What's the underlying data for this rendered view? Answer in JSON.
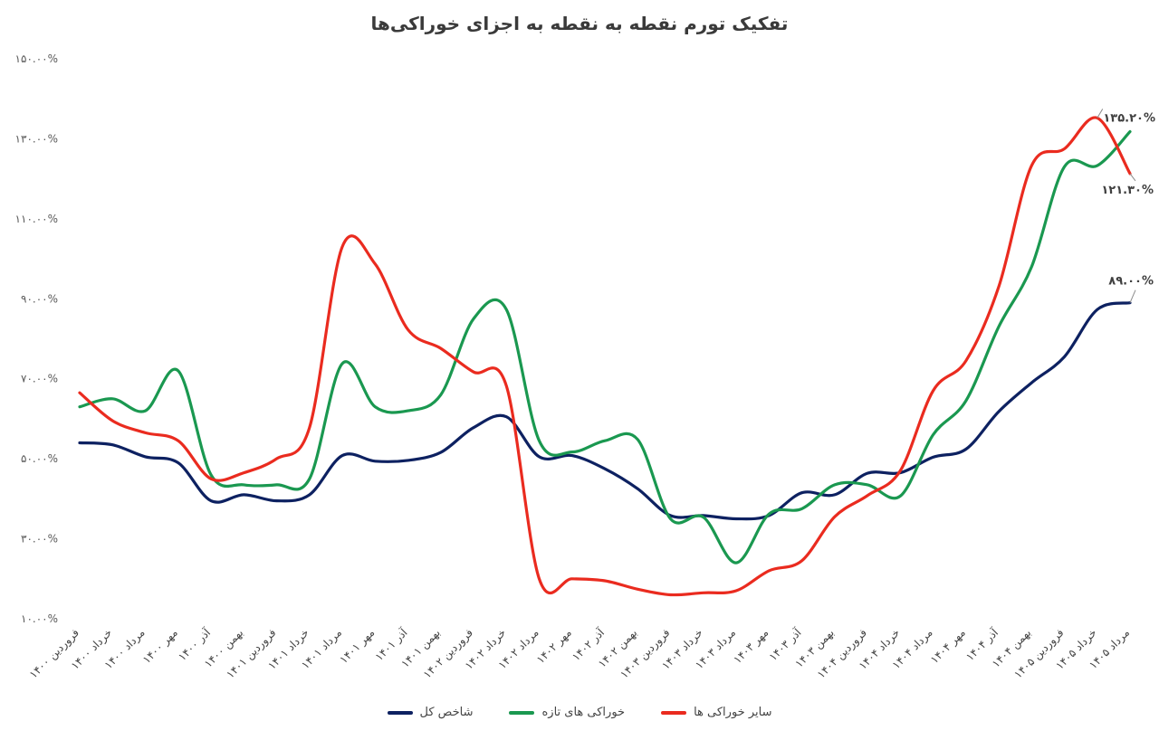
{
  "chart_data": {
    "type": "line",
    "title": "تفکیک تورم نقطه به نقطه به اجزای خوراکی‌ها",
    "xlabel": "",
    "ylabel": "",
    "ylim": [
      10,
      150
    ],
    "y_ticks": [
      10,
      30,
      50,
      70,
      90,
      110,
      130,
      150
    ],
    "y_tick_labels": [
      "۱۰.۰۰%",
      "۳۰.۰۰%",
      "۵۰.۰۰%",
      "۷۰.۰۰%",
      "۹۰.۰۰%",
      "۱۱۰.۰۰%",
      "۱۳۰.۰۰%",
      "۱۵۰.۰۰%"
    ],
    "grid": false,
    "legend_position": "bottom",
    "categories": [
      "فروردین ۱۴۰۰",
      "خرداد ۱۴۰۰",
      "مرداد ۱۴۰۰",
      "مهر ۱۴۰۰",
      "آذر ۱۴۰۰",
      "بهمن ۱۴۰۰",
      "فروردین ۱۴۰۱",
      "خرداد ۱۴۰۱",
      "مرداد ۱۴۰۱",
      "مهر ۱۴۰۱",
      "آذر ۱۴۰۱",
      "بهمن ۱۴۰۱",
      "فروردین ۱۴۰۲",
      "خرداد ۱۴۰۲",
      "مرداد ۱۴۰۲",
      "مهر ۱۴۰۲",
      "آذر ۱۴۰۲",
      "بهمن ۱۴۰۲",
      "فروردین ۱۴۰۳",
      "خرداد ۱۴۰۳",
      "مرداد ۱۴۰۳",
      "مهر ۱۴۰۳",
      "آذر ۱۴۰۳",
      "بهمن ۱۴۰۳",
      "فروردین ۱۴۰۴",
      "خرداد ۱۴۰۴",
      "مرداد ۱۴۰۴",
      "مهر ۱۴۰۴",
      "آذر ۱۴۰۴",
      "بهمن ۱۴۰۴",
      "فروردین ۱۴۰۵",
      "خرداد ۱۴۰۵",
      "مرداد ۱۴۰۵"
    ],
    "series": [
      {
        "name": "شاخص کل",
        "color": "#0d2161",
        "values": [
          54,
          53.5,
          50.5,
          49,
          39.5,
          41,
          39.5,
          41,
          50.8,
          49.4,
          49.6,
          51.6,
          57.8,
          60.5,
          50.5,
          50.8,
          47.5,
          42.5,
          35.8,
          35.8,
          35,
          35.8,
          41.5,
          41,
          46.4,
          46.5,
          50.4,
          52.4,
          61.8,
          69,
          75.5,
          87.3,
          89
        ]
      },
      {
        "name": "خوراکی های تازه",
        "color": "#1a9850",
        "values": [
          63,
          65,
          62,
          72,
          46,
          43.5,
          43.5,
          45,
          73.8,
          63,
          62,
          66,
          85,
          87.3,
          54.5,
          51.7,
          54.5,
          54.8,
          35,
          35.4,
          24,
          36.2,
          37.5,
          43.5,
          43.5,
          40.7,
          56,
          64.5,
          83,
          98,
          123,
          123.3,
          131.8
        ]
      },
      {
        "name": "سایر خوراکی ها",
        "color": "#ea2b1f",
        "values": [
          66.5,
          59.5,
          56.5,
          54.5,
          45,
          46.5,
          50,
          57.8,
          103,
          98.7,
          82.3,
          77.6,
          71.7,
          68.2,
          20,
          20,
          19.5,
          17.4,
          16,
          16.5,
          17,
          22,
          24.5,
          35.5,
          40.8,
          47,
          67,
          74.5,
          93,
          123.3,
          127.5,
          135.2,
          121.3
        ]
      }
    ],
    "annotations": [
      {
        "series": "سایر خوراکی ها",
        "index": 31,
        "text": "۱۳۵.۲۰%"
      },
      {
        "series": "سایر خوراکی ها",
        "index": 32,
        "text": "۱۲۱.۳۰%"
      },
      {
        "series": "شاخص کل",
        "index": 32,
        "text": "۸۹.۰۰%"
      }
    ]
  }
}
